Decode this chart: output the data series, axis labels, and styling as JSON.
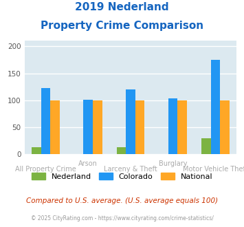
{
  "title_line1": "2019 Nederland",
  "title_line2": "Property Crime Comparison",
  "title_color": "#1565c0",
  "categories": [
    "All Property Crime",
    "Arson",
    "Larceny & Theft",
    "Burglary",
    "Motor Vehicle Theft"
  ],
  "tick_labels_row1": [
    "",
    "Arson",
    "",
    "Burglary",
    ""
  ],
  "tick_labels_row2": [
    "All Property Crime",
    "",
    "Larceny & Theft",
    "",
    "Motor Vehicle Theft"
  ],
  "nederland": [
    13,
    0,
    13,
    0,
    30
  ],
  "colorado": [
    123,
    101,
    120,
    104,
    175
  ],
  "national": [
    100,
    100,
    100,
    100,
    100
  ],
  "nederland_color": "#7cb342",
  "colorado_color": "#2196f3",
  "national_color": "#ffa726",
  "ylim": [
    0,
    210
  ],
  "yticks": [
    0,
    50,
    100,
    150,
    200
  ],
  "legend_labels": [
    "Nederland",
    "Colorado",
    "National"
  ],
  "footnote1": "Compared to U.S. average. (U.S. average equals 100)",
  "footnote2": "© 2025 CityRating.com - https://www.cityrating.com/crime-statistics/",
  "footnote1_color": "#cc3300",
  "footnote2_color": "#999999",
  "background_color": "#dce9f0",
  "fig_background": "#ffffff",
  "bar_width": 0.22,
  "grid_color": "#ffffff"
}
